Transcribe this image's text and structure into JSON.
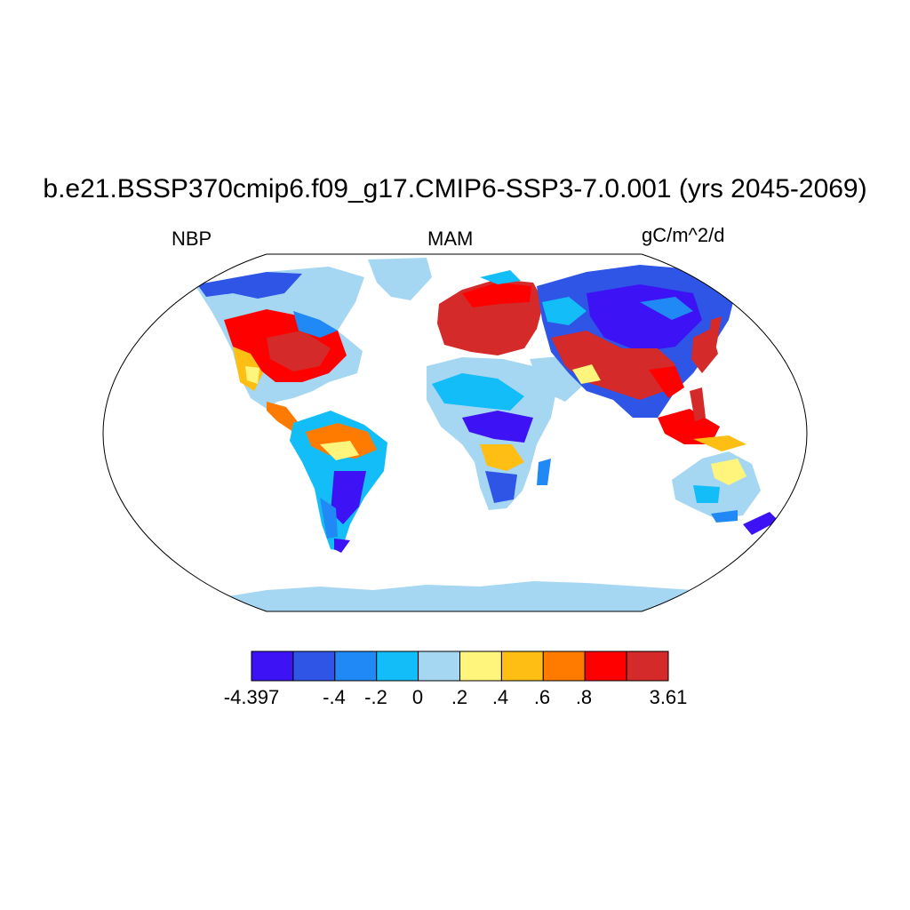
{
  "header": {
    "title": "b.e21.BSSP370cmip6.f09_g17.CMIP6-SSP3-7.0.001 (yrs 2045-2069)",
    "variable": "NBP",
    "season": "MAM",
    "units": "gC/m^2/d"
  },
  "colorbar": {
    "tick_labels": [
      "-4.397",
      "-.4",
      "-.2",
      "0",
      ".2",
      ".4",
      ".6",
      ".8",
      "3.61"
    ],
    "colors": [
      "#3d12f5",
      "#2e55e6",
      "#2189f6",
      "#13bdf8",
      "#a6d7f2",
      "#fff47c",
      "#ffbe14",
      "#ff7b00",
      "#ff0000",
      "#d42a2a"
    ]
  },
  "map_colors": {
    "land_neutral": "#a6d7f2",
    "ocean": "#ffffff"
  }
}
